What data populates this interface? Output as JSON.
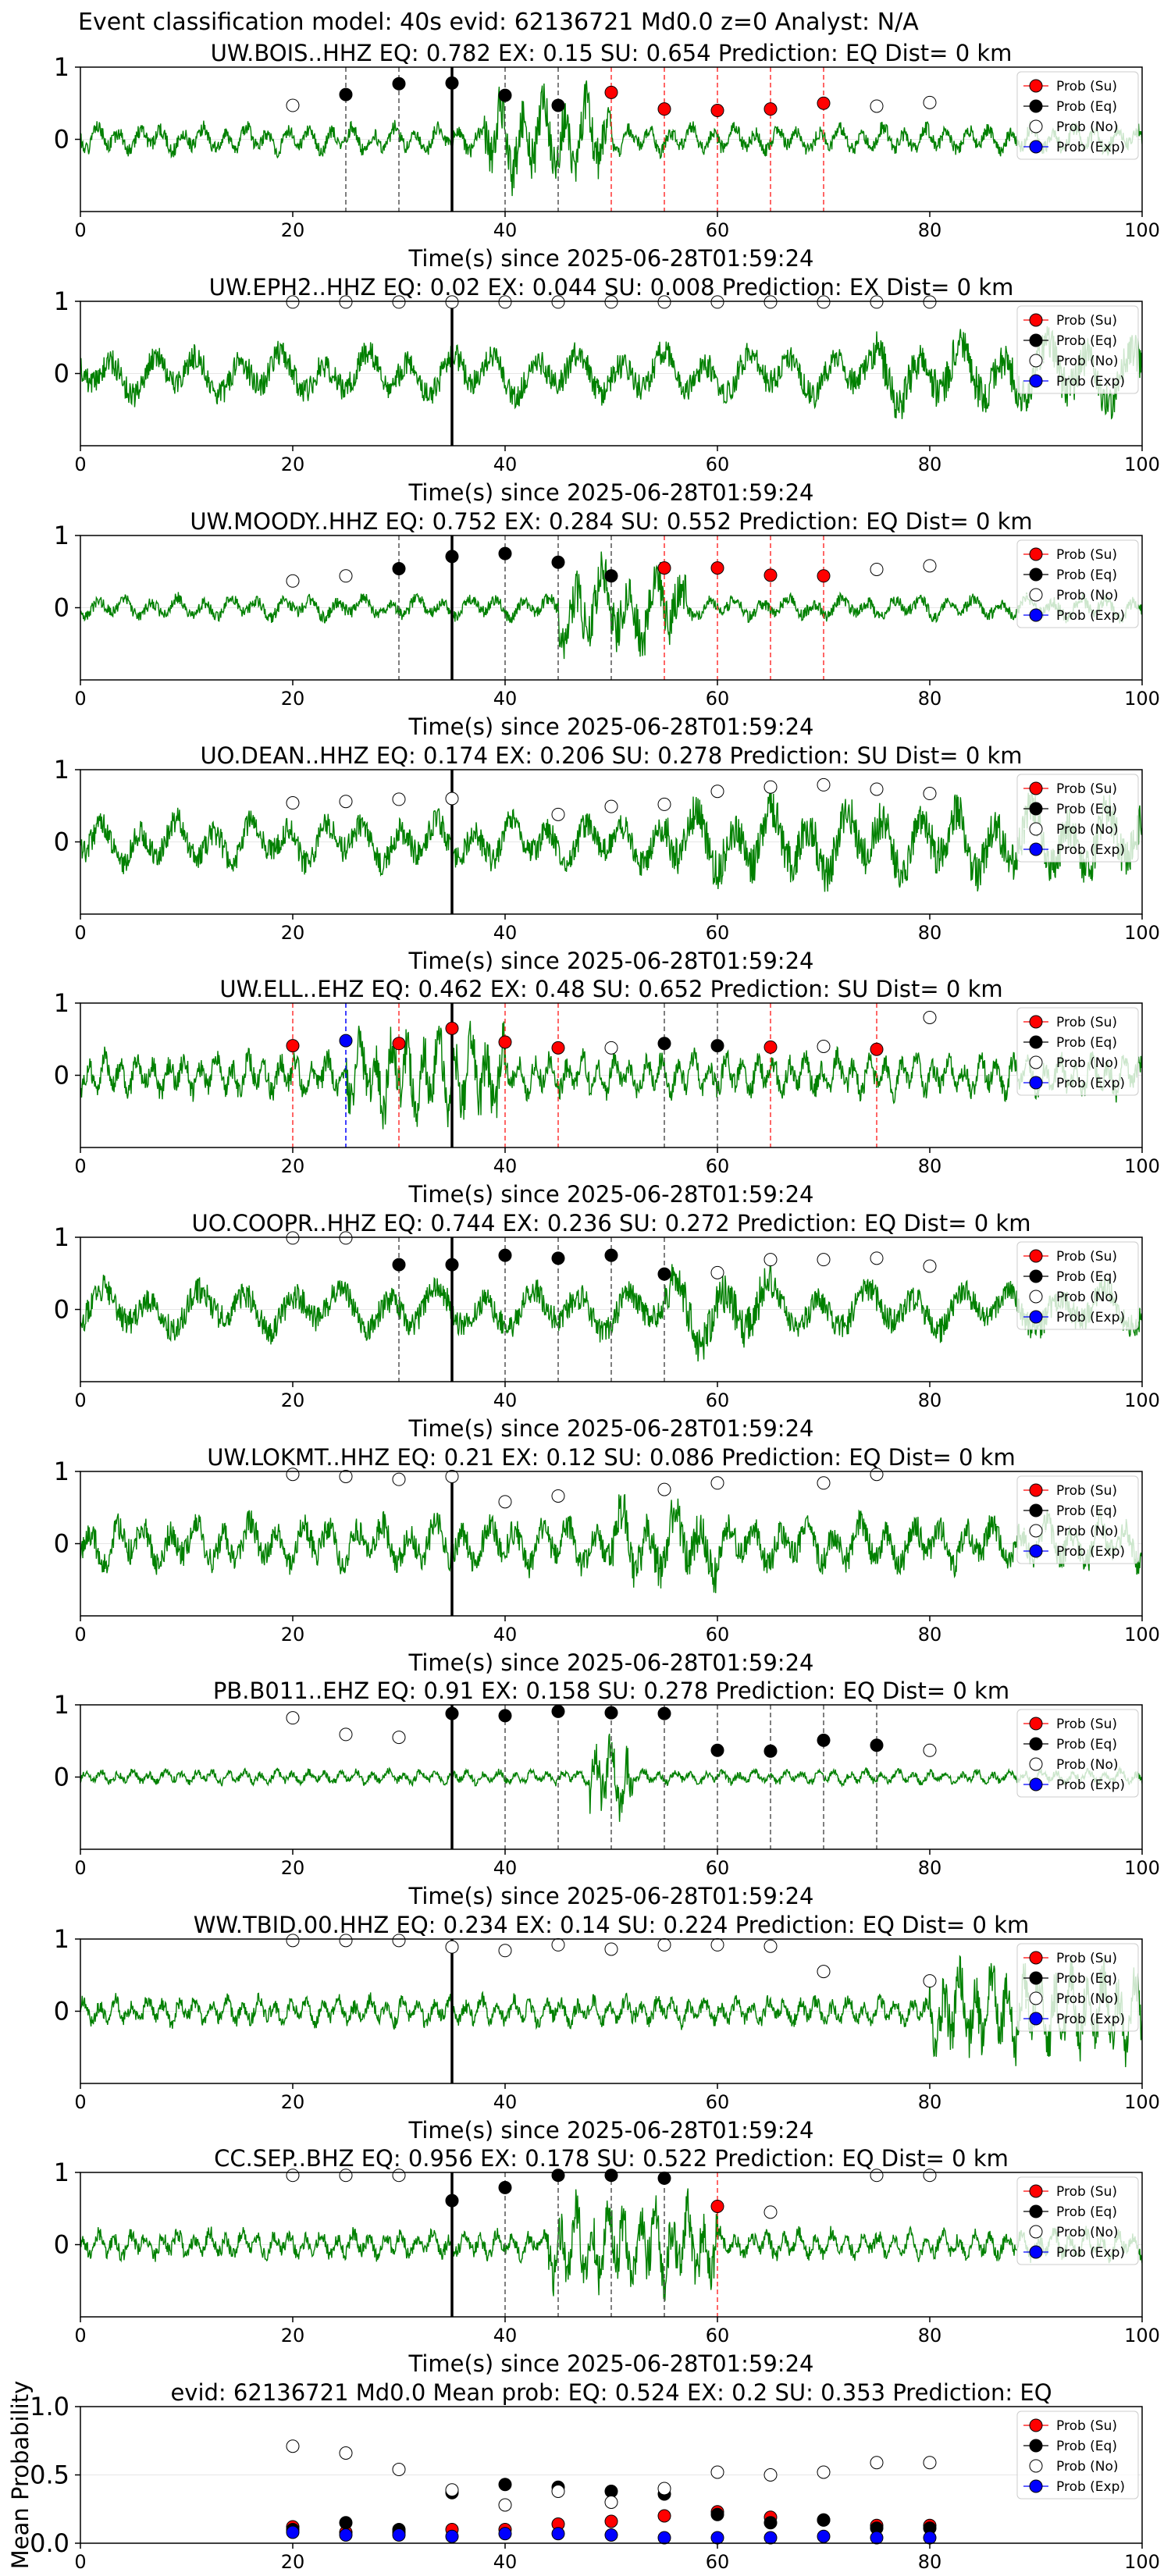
{
  "figure": {
    "title": "Event classification model: 40s evid: 62136721 Md0.0 z=0 Analyst: N/A"
  },
  "colors": {
    "waveform": "#008000",
    "su": "#ff0000",
    "eq": "#000000",
    "no": "#ffffff",
    "exp": "#0000ff"
  },
  "legend": {
    "position": "top-right",
    "entries": [
      "Prob (Su)",
      "Prob (Eq)",
      "Prob (No)",
      "Prob (Exp)"
    ]
  },
  "chart_data": [
    {
      "type": "line",
      "station": "UW.BOIS..HHZ",
      "title": "UW.BOIS..HHZ   EQ: 0.782  EX: 0.15  SU: 0.654   Prediction: EQ    Dist= 0 km",
      "xlabel": "Time(s) since 2025-06-28T01:59:24",
      "xlim": [
        0,
        100
      ],
      "ylim": [
        -1,
        1
      ],
      "xticks": [
        "0",
        "20",
        "40",
        "60",
        "80",
        "100"
      ],
      "yticks": [
        "1",
        "0"
      ],
      "waveform": {
        "amp": 0.3,
        "burst": [
          38,
          50
        ],
        "burst_amp": 0.95,
        "period": 2,
        "seed": 1
      },
      "pick_line": 35,
      "markers": [
        {
          "x": 20,
          "y": 0.47,
          "c": "no"
        },
        {
          "x": 25,
          "y": 0.62,
          "c": "eq"
        },
        {
          "x": 30,
          "y": 0.77,
          "c": "eq"
        },
        {
          "x": 35,
          "y": 0.78,
          "c": "eq"
        },
        {
          "x": 40,
          "y": 0.61,
          "c": "eq"
        },
        {
          "x": 45,
          "y": 0.47,
          "c": "eq"
        },
        {
          "x": 50,
          "y": 0.65,
          "c": "su"
        },
        {
          "x": 55,
          "y": 0.42,
          "c": "su"
        },
        {
          "x": 60,
          "y": 0.4,
          "c": "su"
        },
        {
          "x": 65,
          "y": 0.42,
          "c": "su"
        },
        {
          "x": 70,
          "y": 0.5,
          "c": "su"
        },
        {
          "x": 75,
          "y": 0.46,
          "c": "no"
        },
        {
          "x": 80,
          "y": 0.51,
          "c": "no"
        }
      ]
    },
    {
      "type": "line",
      "station": "UW.EPH2..HHZ",
      "title": "UW.EPH2..HHZ   EQ: 0.02  EX: 0.044  SU: 0.008   Prediction: EX    Dist= 0 km",
      "xlabel": "Time(s) since 2025-06-28T01:59:24",
      "xlim": [
        0,
        100
      ],
      "ylim": [
        -1,
        1
      ],
      "xticks": [
        "0",
        "20",
        "40",
        "60",
        "80",
        "100"
      ],
      "yticks": [
        "1",
        "0"
      ],
      "waveform": {
        "amp": 0.55,
        "burst": [
          75,
          100
        ],
        "burst_amp": 0.8,
        "period": 4,
        "seed": 2
      },
      "pick_line": 35,
      "markers": [
        {
          "x": 20,
          "y": 0.99,
          "c": "no"
        },
        {
          "x": 25,
          "y": 0.99,
          "c": "no"
        },
        {
          "x": 30,
          "y": 0.99,
          "c": "no"
        },
        {
          "x": 35,
          "y": 0.99,
          "c": "no"
        },
        {
          "x": 40,
          "y": 0.99,
          "c": "no"
        },
        {
          "x": 45,
          "y": 0.99,
          "c": "no"
        },
        {
          "x": 50,
          "y": 0.99,
          "c": "no"
        },
        {
          "x": 55,
          "y": 0.99,
          "c": "no"
        },
        {
          "x": 60,
          "y": 0.99,
          "c": "no"
        },
        {
          "x": 65,
          "y": 0.99,
          "c": "no"
        },
        {
          "x": 70,
          "y": 0.99,
          "c": "no"
        },
        {
          "x": 75,
          "y": 0.99,
          "c": "no"
        },
        {
          "x": 80,
          "y": 0.99,
          "c": "no"
        }
      ]
    },
    {
      "type": "line",
      "station": "UW.MOODY..HHZ",
      "title": "UW.MOODY..HHZ   EQ: 0.752  EX: 0.284  SU: 0.552   Prediction: EQ    Dist= 0 km",
      "xlabel": "Time(s) since 2025-06-28T01:59:24",
      "xlim": [
        0,
        100
      ],
      "ylim": [
        -1,
        1
      ],
      "xticks": [
        "0",
        "20",
        "40",
        "60",
        "80",
        "100"
      ],
      "yticks": [
        "1",
        "0"
      ],
      "waveform": {
        "amp": 0.25,
        "burst": [
          45,
          57
        ],
        "burst_amp": 0.95,
        "period": 2.5,
        "seed": 3
      },
      "pick_line": 35,
      "markers": [
        {
          "x": 20,
          "y": 0.37,
          "c": "no"
        },
        {
          "x": 25,
          "y": 0.44,
          "c": "no"
        },
        {
          "x": 30,
          "y": 0.54,
          "c": "eq"
        },
        {
          "x": 35,
          "y": 0.71,
          "c": "eq"
        },
        {
          "x": 40,
          "y": 0.75,
          "c": "eq"
        },
        {
          "x": 45,
          "y": 0.63,
          "c": "eq"
        },
        {
          "x": 50,
          "y": 0.44,
          "c": "eq"
        },
        {
          "x": 55,
          "y": 0.55,
          "c": "su"
        },
        {
          "x": 60,
          "y": 0.55,
          "c": "su"
        },
        {
          "x": 65,
          "y": 0.45,
          "c": "su"
        },
        {
          "x": 70,
          "y": 0.44,
          "c": "su"
        },
        {
          "x": 75,
          "y": 0.53,
          "c": "no"
        },
        {
          "x": 80,
          "y": 0.58,
          "c": "no"
        }
      ]
    },
    {
      "type": "line",
      "station": "UO.DEAN..HHZ",
      "title": "UO.DEAN..HHZ   EQ: 0.174  EX: 0.206  SU: 0.278   Prediction: SU    Dist= 0 km",
      "xlabel": "Time(s) since 2025-06-28T01:59:24",
      "xlim": [
        0,
        100
      ],
      "ylim": [
        -1,
        1
      ],
      "xticks": [
        "0",
        "20",
        "40",
        "60",
        "80",
        "100"
      ],
      "yticks": [
        "1",
        "0"
      ],
      "waveform": {
        "amp": 0.55,
        "burst": [
          55,
          100
        ],
        "burst_amp": 0.85,
        "period": 3.5,
        "seed": 4
      },
      "pick_line": 35,
      "markers": [
        {
          "x": 20,
          "y": 0.54,
          "c": "no"
        },
        {
          "x": 25,
          "y": 0.56,
          "c": "no"
        },
        {
          "x": 30,
          "y": 0.59,
          "c": "no"
        },
        {
          "x": 35,
          "y": 0.6,
          "c": "no"
        },
        {
          "x": 45,
          "y": 0.38,
          "c": "no"
        },
        {
          "x": 50,
          "y": 0.49,
          "c": "no"
        },
        {
          "x": 55,
          "y": 0.52,
          "c": "no"
        },
        {
          "x": 60,
          "y": 0.7,
          "c": "no"
        },
        {
          "x": 65,
          "y": 0.76,
          "c": "no"
        },
        {
          "x": 70,
          "y": 0.79,
          "c": "no"
        },
        {
          "x": 75,
          "y": 0.73,
          "c": "no"
        },
        {
          "x": 80,
          "y": 0.67,
          "c": "no"
        }
      ]
    },
    {
      "type": "line",
      "station": "UW.ELL..EHZ",
      "title": "UW.ELL..EHZ   EQ: 0.462  EX: 0.48  SU: 0.652   Prediction: SU    Dist= 0 km",
      "xlabel": "Time(s) since 2025-06-28T01:59:24",
      "xlim": [
        0,
        100
      ],
      "ylim": [
        -1,
        1
      ],
      "xticks": [
        "0",
        "20",
        "40",
        "60",
        "80",
        "100"
      ],
      "yticks": [
        "1",
        "0"
      ],
      "waveform": {
        "amp": 0.45,
        "burst": [
          25,
          40
        ],
        "burst_amp": 0.95,
        "period": 1.5,
        "seed": 5
      },
      "pick_line": 35,
      "markers": [
        {
          "x": 20,
          "y": 0.41,
          "c": "su"
        },
        {
          "x": 25,
          "y": 0.48,
          "c": "exp"
        },
        {
          "x": 30,
          "y": 0.44,
          "c": "su"
        },
        {
          "x": 35,
          "y": 0.65,
          "c": "su"
        },
        {
          "x": 40,
          "y": 0.46,
          "c": "su"
        },
        {
          "x": 45,
          "y": 0.38,
          "c": "su"
        },
        {
          "x": 50,
          "y": 0.38,
          "c": "no"
        },
        {
          "x": 55,
          "y": 0.44,
          "c": "eq"
        },
        {
          "x": 60,
          "y": 0.41,
          "c": "eq"
        },
        {
          "x": 65,
          "y": 0.39,
          "c": "su"
        },
        {
          "x": 70,
          "y": 0.4,
          "c": "no"
        },
        {
          "x": 75,
          "y": 0.36,
          "c": "su"
        },
        {
          "x": 80,
          "y": 0.8,
          "c": "no"
        }
      ]
    },
    {
      "type": "line",
      "station": "UO.COOPR..HHZ",
      "title": "UO.COOPR..HHZ   EQ: 0.744  EX: 0.236  SU: 0.272   Prediction: EQ    Dist= 0 km",
      "xlabel": "Time(s) since 2025-06-28T01:59:24",
      "xlim": [
        0,
        100
      ],
      "ylim": [
        -1,
        1
      ],
      "xticks": [
        "0",
        "20",
        "40",
        "60",
        "80",
        "100"
      ],
      "yticks": [
        "1",
        "0"
      ],
      "waveform": {
        "amp": 0.55,
        "burst": [
          55,
          65
        ],
        "burst_amp": 0.9,
        "period": 4.5,
        "seed": 6
      },
      "pick_line": 35,
      "markers": [
        {
          "x": 20,
          "y": 0.99,
          "c": "no"
        },
        {
          "x": 25,
          "y": 0.99,
          "c": "no"
        },
        {
          "x": 30,
          "y": 0.62,
          "c": "eq"
        },
        {
          "x": 35,
          "y": 0.62,
          "c": "eq"
        },
        {
          "x": 40,
          "y": 0.75,
          "c": "eq"
        },
        {
          "x": 45,
          "y": 0.71,
          "c": "eq"
        },
        {
          "x": 50,
          "y": 0.75,
          "c": "eq"
        },
        {
          "x": 55,
          "y": 0.49,
          "c": "eq"
        },
        {
          "x": 60,
          "y": 0.51,
          "c": "no"
        },
        {
          "x": 65,
          "y": 0.69,
          "c": "no"
        },
        {
          "x": 70,
          "y": 0.69,
          "c": "no"
        },
        {
          "x": 75,
          "y": 0.71,
          "c": "no"
        },
        {
          "x": 80,
          "y": 0.6,
          "c": "no"
        }
      ]
    },
    {
      "type": "line",
      "station": "UW.LOKMT..HHZ",
      "title": "UW.LOKMT..HHZ   EQ: 0.21  EX: 0.12  SU: 0.086   Prediction: EQ    Dist= 0 km",
      "xlabel": "Time(s) since 2025-06-28T01:59:24",
      "xlim": [
        0,
        100
      ],
      "ylim": [
        -1,
        1
      ],
      "xticks": [
        "0",
        "20",
        "40",
        "60",
        "80",
        "100"
      ],
      "yticks": [
        "1",
        "0"
      ],
      "waveform": {
        "amp": 0.55,
        "burst": [
          50,
          60
        ],
        "burst_amp": 0.9,
        "period": 2.5,
        "seed": 7
      },
      "pick_line": 35,
      "markers": [
        {
          "x": 20,
          "y": 0.96,
          "c": "no"
        },
        {
          "x": 25,
          "y": 0.93,
          "c": "no"
        },
        {
          "x": 30,
          "y": 0.89,
          "c": "no"
        },
        {
          "x": 35,
          "y": 0.93,
          "c": "no"
        },
        {
          "x": 40,
          "y": 0.58,
          "c": "no"
        },
        {
          "x": 45,
          "y": 0.66,
          "c": "no"
        },
        {
          "x": 55,
          "y": 0.75,
          "c": "no"
        },
        {
          "x": 60,
          "y": 0.84,
          "c": "no"
        },
        {
          "x": 70,
          "y": 0.84,
          "c": "no"
        },
        {
          "x": 75,
          "y": 0.96,
          "c": "no"
        }
      ]
    },
    {
      "type": "line",
      "station": "PB.B011..EHZ",
      "title": "PB.B011..EHZ   EQ: 0.91  EX: 0.158  SU: 0.278   Prediction: EQ    Dist= 0 km",
      "xlabel": "Time(s) since 2025-06-28T01:59:24",
      "xlim": [
        0,
        100
      ],
      "ylim": [
        -1,
        1
      ],
      "xticks": [
        "0",
        "20",
        "40",
        "60",
        "80",
        "100"
      ],
      "yticks": [
        "1",
        "0"
      ],
      "waveform": {
        "amp": 0.15,
        "burst": [
          48,
          52
        ],
        "burst_amp": 0.9,
        "period": 1.5,
        "seed": 8
      },
      "pick_line": 35,
      "markers": [
        {
          "x": 20,
          "y": 0.82,
          "c": "no"
        },
        {
          "x": 25,
          "y": 0.59,
          "c": "no"
        },
        {
          "x": 30,
          "y": 0.55,
          "c": "no"
        },
        {
          "x": 35,
          "y": 0.88,
          "c": "eq"
        },
        {
          "x": 40,
          "y": 0.85,
          "c": "eq"
        },
        {
          "x": 45,
          "y": 0.91,
          "c": "eq"
        },
        {
          "x": 50,
          "y": 0.89,
          "c": "eq"
        },
        {
          "x": 55,
          "y": 0.88,
          "c": "eq"
        },
        {
          "x": 60,
          "y": 0.37,
          "c": "eq"
        },
        {
          "x": 65,
          "y": 0.36,
          "c": "eq"
        },
        {
          "x": 70,
          "y": 0.51,
          "c": "eq"
        },
        {
          "x": 75,
          "y": 0.44,
          "c": "eq"
        },
        {
          "x": 80,
          "y": 0.37,
          "c": "no"
        }
      ]
    },
    {
      "type": "line",
      "station": "WW.TBID.00.HHZ",
      "title": "WW.TBID.00.HHZ   EQ: 0.234  EX: 0.14  SU: 0.224   Prediction: EQ    Dist= 0 km",
      "xlabel": "Time(s) since 2025-06-28T01:59:24",
      "xlim": [
        0,
        100
      ],
      "ylim": [
        -1,
        1
      ],
      "xticks": [
        "0",
        "20",
        "40",
        "60",
        "80",
        "100"
      ],
      "yticks": [
        "1",
        "0"
      ],
      "waveform": {
        "amp": 0.3,
        "burst": [
          80,
          100
        ],
        "burst_amp": 0.95,
        "period": 1.5,
        "seed": 9
      },
      "pick_line": 35,
      "markers": [
        {
          "x": 20,
          "y": 0.98,
          "c": "no"
        },
        {
          "x": 25,
          "y": 0.98,
          "c": "no"
        },
        {
          "x": 30,
          "y": 0.98,
          "c": "no"
        },
        {
          "x": 35,
          "y": 0.89,
          "c": "no"
        },
        {
          "x": 40,
          "y": 0.84,
          "c": "no"
        },
        {
          "x": 45,
          "y": 0.92,
          "c": "no"
        },
        {
          "x": 50,
          "y": 0.86,
          "c": "no"
        },
        {
          "x": 55,
          "y": 0.92,
          "c": "no"
        },
        {
          "x": 60,
          "y": 0.92,
          "c": "no"
        },
        {
          "x": 65,
          "y": 0.9,
          "c": "no"
        },
        {
          "x": 70,
          "y": 0.55,
          "c": "no"
        },
        {
          "x": 80,
          "y": 0.42,
          "c": "no"
        }
      ]
    },
    {
      "type": "line",
      "station": "CC.SEP..BHZ",
      "title": "CC.SEP..BHZ   EQ: 0.956  EX: 0.178  SU: 0.522   Prediction: EQ    Dist= 0 km",
      "xlabel": "Time(s) since 2025-06-28T01:59:24",
      "xlim": [
        0,
        100
      ],
      "ylim": [
        -1,
        1
      ],
      "xticks": [
        "0",
        "20",
        "40",
        "60",
        "80",
        "100"
      ],
      "yticks": [
        "1",
        "0"
      ],
      "waveform": {
        "amp": 0.3,
        "burst": [
          44,
          60
        ],
        "burst_amp": 0.95,
        "period": 1.5,
        "seed": 10
      },
      "pick_line": 35,
      "markers": [
        {
          "x": 20,
          "y": 0.96,
          "c": "no"
        },
        {
          "x": 25,
          "y": 0.96,
          "c": "no"
        },
        {
          "x": 30,
          "y": 0.96,
          "c": "no"
        },
        {
          "x": 35,
          "y": 0.61,
          "c": "eq"
        },
        {
          "x": 40,
          "y": 0.79,
          "c": "eq"
        },
        {
          "x": 45,
          "y": 0.96,
          "c": "eq"
        },
        {
          "x": 50,
          "y": 0.96,
          "c": "eq"
        },
        {
          "x": 55,
          "y": 0.92,
          "c": "eq"
        },
        {
          "x": 60,
          "y": 0.53,
          "c": "su"
        },
        {
          "x": 65,
          "y": 0.45,
          "c": "no"
        },
        {
          "x": 75,
          "y": 0.96,
          "c": "no"
        },
        {
          "x": 80,
          "y": 0.96,
          "c": "no"
        }
      ]
    },
    {
      "type": "scatter",
      "station": "",
      "title": "evid: 62136721  Md0.0   Mean prob:   EQ: 0.524  EX: 0.2  SU: 0.353   Prediction: EQ",
      "ylabel": "Mean Probability",
      "xlim": [
        0,
        100
      ],
      "ylim": [
        0,
        1
      ],
      "xticks": [
        "0",
        "20",
        "40",
        "60",
        "80",
        "100"
      ],
      "yticks": [
        "1.0",
        "0.5",
        "0.0"
      ],
      "x": [
        20,
        25,
        30,
        35,
        40,
        45,
        50,
        55,
        60,
        65,
        70,
        75,
        80
      ],
      "series": [
        {
          "name": "Prob (Su)",
          "color": "su",
          "values": [
            0.12,
            0.08,
            0.08,
            0.1,
            0.1,
            0.14,
            0.16,
            0.2,
            0.23,
            0.19,
            0.17,
            0.13,
            0.13
          ]
        },
        {
          "name": "Prob (Eq)",
          "color": "eq",
          "values": [
            0.1,
            0.15,
            0.1,
            0.37,
            0.43,
            0.41,
            0.38,
            0.36,
            0.21,
            0.15,
            0.17,
            0.11,
            0.11
          ]
        },
        {
          "name": "Prob (No)",
          "color": "no",
          "values": [
            0.71,
            0.66,
            0.54,
            0.39,
            0.28,
            0.38,
            0.3,
            0.4,
            0.52,
            0.5,
            0.52,
            0.59,
            0.59
          ]
        },
        {
          "name": "Prob (Exp)",
          "color": "exp",
          "values": [
            0.08,
            0.06,
            0.06,
            0.05,
            0.07,
            0.07,
            0.06,
            0.04,
            0.04,
            0.04,
            0.05,
            0.04,
            0.04
          ]
        }
      ]
    }
  ]
}
